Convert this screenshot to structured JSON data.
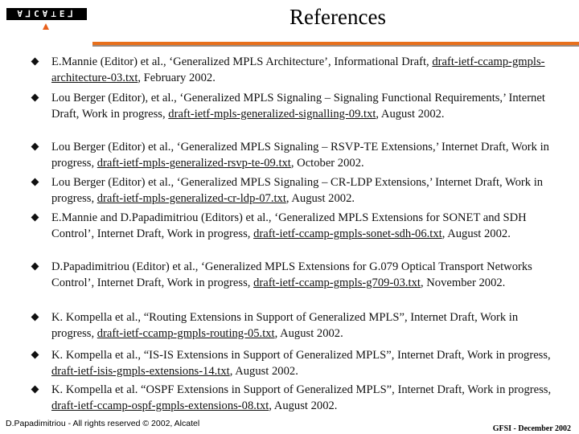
{
  "logo": {
    "text": "ALCATEL",
    "accent": "#e8601c"
  },
  "title": "References",
  "references": [
    {
      "before": "E.Mannie (Editor) et al., ‘Generalized MPLS Architecture’, Informational Draft, ",
      "link": "draft-ietf-ccamp-gmpls-architecture-03.txt",
      "after": ", February 2002."
    },
    {
      "before": "Lou Berger (Editor), et al., ‘Generalized MPLS Signaling – Signaling Functional Requirements,’ Internet Draft, Work in progress, ",
      "link": "draft-ietf-mpls-generalized-signalling-09.txt",
      "after": ", August 2002."
    },
    {
      "before": "Lou Berger (Editor) et al., ‘Generalized MPLS Signaling – RSVP-TE Extensions,’ Internet Draft, Work in progress, ",
      "link": "draft-ietf-mpls-generalized-rsvp-te-09.txt",
      "after": ", October 2002."
    },
    {
      "before": "Lou Berger (Editor) et al., ‘Generalized MPLS Signaling – CR-LDP Extensions,’ Internet Draft, Work in progress, ",
      "link": "draft-ietf-mpls-generalized-cr-ldp-07.txt",
      "after": ", August 2002."
    },
    {
      "before": "E.Mannie and D.Papadimitriou (Editors) et al., ‘Generalized MPLS Extensions for SONET and SDH Control’, Internet Draft, Work in progress, ",
      "link": "draft-ietf-ccamp-gmpls-sonet-sdh-06.txt",
      "after": ", August 2002."
    },
    {
      "before": "D.Papadimitriou (Editor) et al., ‘Generalized MPLS Extensions for G.079 Optical Transport Networks Control’, Internet Draft, Work in progress, ",
      "link": "draft-ietf-ccamp-gmpls-g709-03.txt",
      "after": ", November 2002."
    },
    {
      "before": "K. Kompella et al., “Routing Extensions in Support of Generalized MPLS”,  Internet Draft, Work in progress, ",
      "link": "draft-ietf-ccamp-gmpls-routing-05.txt",
      "after": ", August 2002."
    },
    {
      "before": "K. Kompella et al., “IS-IS Extensions in Support of Generalized MPLS”, Internet Draft, Work in progress, ",
      "link": "draft-ietf-isis-gmpls-extensions-14.txt",
      "after": ", August 2002."
    },
    {
      "before": "K. Kompella et al. “OSPF Extensions in Support of Generalized MPLS”, Internet Draft, Work in progress, ",
      "link": "draft-ietf-ccamp-ospf-gmpls-extensions-08.txt",
      "after": ", August 2002."
    }
  ],
  "footer": {
    "left": "D.Papadimitriou - All rights reserved © 2002, Alcatel",
    "right": "GFSI - December 2002"
  }
}
